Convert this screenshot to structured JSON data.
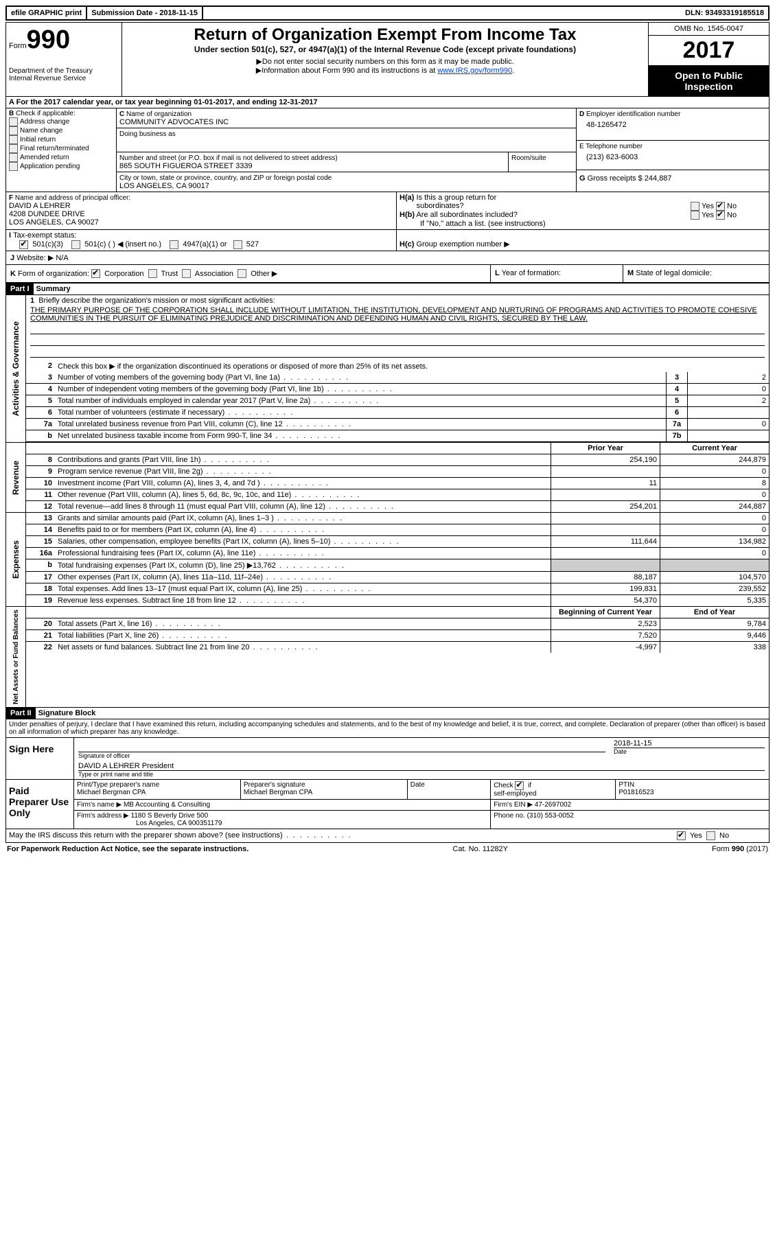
{
  "efile": {
    "print": "efile GRAPHIC print",
    "sub_label": "Submission Date - 2018-11-15",
    "dln": "DLN: 93493319185518"
  },
  "header": {
    "form_word": "Form",
    "form_num": "990",
    "dept1": "Department of the Treasury",
    "dept2": "Internal Revenue Service",
    "title": "Return of Organization Exempt From Income Tax",
    "subtitle": "Under section 501(c), 527, or 4947(a)(1) of the Internal Revenue Code (except private foundations)",
    "line_ssn": "Do not enter social security numbers on this form as it may be made public.",
    "line_info_a": "Information about Form 990 and its instructions is at ",
    "line_info_link": "www.IRS.gov/form990",
    "omb": "OMB No. 1545-0047",
    "year": "2017",
    "open1": "Open to Public",
    "open2": "Inspection"
  },
  "A": {
    "text_a": "For the 2017 calendar year, or tax year beginning 01-01-2017",
    "text_b": ", and ending 12-31-2017"
  },
  "B": {
    "label": "Check if applicable:",
    "opts": [
      "Address change",
      "Name change",
      "Initial return",
      "Final return/terminated",
      "Amended return",
      "Application pending"
    ],
    "letter": "B"
  },
  "C": {
    "name_label": "Name of organization",
    "name": "COMMUNITY ADVOCATES INC",
    "dba_label": "Doing business as",
    "street_label": "Number and street (or P.O. box if mail is not delivered to street address)",
    "room_label": "Room/suite",
    "street": "865 SOUTH FIGUEROA STREET 3339",
    "city_label": "City or town, state or province, country, and ZIP or foreign postal code",
    "city": "LOS ANGELES, CA  90017",
    "letter": "C"
  },
  "D": {
    "label": "Employer identification number",
    "val": "48-1265472",
    "letter": "D"
  },
  "E": {
    "label": "Telephone number",
    "val": "(213) 623-6003"
  },
  "G": {
    "label": "Gross receipts $",
    "val": "244,887",
    "letter": "G"
  },
  "F": {
    "label": "Name and address of principal officer:",
    "name": "DAVID A LEHRER",
    "addr1": "4208 DUNDEE DRIVE",
    "addr2": "LOS ANGELES, CA  90027",
    "letter": "F"
  },
  "H": {
    "a": "Is this a group return for",
    "a2": "subordinates?",
    "b": "Are all subordinates included?",
    "note": "If \"No,\" attach a list. (see instructions)",
    "c": "Group exemption number ▶",
    "yes": "Yes",
    "no": "No"
  },
  "I": {
    "label": "Tax-exempt status:",
    "o1": "501(c)(3)",
    "o2": "501(c) (   ) ◀ (insert no.)",
    "o3": "4947(a)(1) or",
    "o4": "527"
  },
  "J": {
    "label": "Website: ▶",
    "val": "N/A"
  },
  "K": {
    "label": "Form of organization:",
    "opts": [
      "Corporation",
      "Trust",
      "Association",
      "Other ▶"
    ]
  },
  "L": {
    "label": "Year of formation:"
  },
  "M": {
    "label": "State of legal domicile:"
  },
  "part1": {
    "hdr": "Part I",
    "title": "Summary",
    "side_gov": "Activities & Governance",
    "side_rev": "Revenue",
    "side_exp": "Expenses",
    "side_net": "Net Assets or Fund Balances",
    "l1_label": "Briefly describe the organization's mission or most significant activities:",
    "mission": "THE PRIMARY PURPOSE OF THE CORPORATION SHALL INCLUDE WITHOUT LIMITATION, THE INSTITUTION, DEVELOPMENT AND NURTURING OF PROGRAMS AND ACTIVITIES TO PROMOTE COHESIVE COMMUNITIES IN THE PURSUIT OF ELIMINATING PREJUDICE AND DISCRIMINATION AND DEFENDING HUMAN AND CIVIL RIGHTS, SECURED BY THE LAW.",
    "l2": "Check this box ▶      if the organization discontinued its operations or disposed of more than 25% of its net assets.",
    "lines_simple": [
      {
        "n": "3",
        "d": "Number of voting members of the governing body (Part VI, line 1a)",
        "c": "3",
        "v": "2"
      },
      {
        "n": "4",
        "d": "Number of independent voting members of the governing body (Part VI, line 1b)",
        "c": "4",
        "v": "0"
      },
      {
        "n": "5",
        "d": "Total number of individuals employed in calendar year 2017 (Part V, line 2a)",
        "c": "5",
        "v": "2"
      },
      {
        "n": "6",
        "d": "Total number of volunteers (estimate if necessary)",
        "c": "6",
        "v": ""
      },
      {
        "n": "7a",
        "d": "Total unrelated business revenue from Part VIII, column (C), line 12",
        "c": "7a",
        "v": "0"
      },
      {
        "n": "b",
        "d": "Net unrelated business taxable income from Form 990-T, line 34",
        "c": "7b",
        "v": ""
      }
    ],
    "col_prior": "Prior Year",
    "col_curr": "Current Year",
    "rev_lines": [
      {
        "n": "8",
        "d": "Contributions and grants (Part VIII, line 1h)",
        "p": "254,190",
        "c": "244,879"
      },
      {
        "n": "9",
        "d": "Program service revenue (Part VIII, line 2g)",
        "p": "",
        "c": "0"
      },
      {
        "n": "10",
        "d": "Investment income (Part VIII, column (A), lines 3, 4, and 7d )",
        "p": "11",
        "c": "8"
      },
      {
        "n": "11",
        "d": "Other revenue (Part VIII, column (A), lines 5, 6d, 8c, 9c, 10c, and 11e)",
        "p": "",
        "c": "0"
      },
      {
        "n": "12",
        "d": "Total revenue—add lines 8 through 11 (must equal Part VIII, column (A), line 12)",
        "p": "254,201",
        "c": "244,887"
      }
    ],
    "exp_lines": [
      {
        "n": "13",
        "d": "Grants and similar amounts paid (Part IX, column (A), lines 1–3 )",
        "p": "",
        "c": "0"
      },
      {
        "n": "14",
        "d": "Benefits paid to or for members (Part IX, column (A), line 4)",
        "p": "",
        "c": "0"
      },
      {
        "n": "15",
        "d": "Salaries, other compensation, employee benefits (Part IX, column (A), lines 5–10)",
        "p": "111,644",
        "c": "134,982"
      },
      {
        "n": "16a",
        "d": "Professional fundraising fees (Part IX, column (A), line 11e)",
        "p": "",
        "c": "0"
      },
      {
        "n": "b",
        "d": "Total fundraising expenses (Part IX, column (D), line 25) ▶13,762",
        "p": "GRAY",
        "c": "GRAY"
      },
      {
        "n": "17",
        "d": "Other expenses (Part IX, column (A), lines 11a–11d, 11f–24e)",
        "p": "88,187",
        "c": "104,570"
      },
      {
        "n": "18",
        "d": "Total expenses. Add lines 13–17 (must equal Part IX, column (A), line 25)",
        "p": "199,831",
        "c": "239,552"
      },
      {
        "n": "19",
        "d": "Revenue less expenses. Subtract line 18 from line 12",
        "p": "54,370",
        "c": "5,335"
      }
    ],
    "col_bcy": "Beginning of Current Year",
    "col_eoy": "End of Year",
    "net_lines": [
      {
        "n": "20",
        "d": "Total assets (Part X, line 16)",
        "p": "2,523",
        "c": "9,784"
      },
      {
        "n": "21",
        "d": "Total liabilities (Part X, line 26)",
        "p": "7,520",
        "c": "9,446"
      },
      {
        "n": "22",
        "d": "Net assets or fund balances. Subtract line 21 from line 20",
        "p": "-4,997",
        "c": "338"
      }
    ]
  },
  "part2": {
    "hdr": "Part II",
    "title": "Signature Block",
    "jurat": "Under penalties of perjury, I declare that I have examined this return, including accompanying schedules and statements, and to the best of my knowledge and belief, it is true, correct, and complete. Declaration of preparer (other than officer) is based on all information of which preparer has any knowledge.",
    "sign_here": "Sign Here",
    "sig_label": "Signature of officer",
    "date_label": "Date",
    "date": "2018-11-15",
    "name_title": "DAVID A LEHRER President",
    "name_title_label": "Type or print name and title",
    "paid": "Paid Preparer Use Only",
    "prep_name_l": "Print/Type preparer's name",
    "prep_name": "Michael Bergman CPA",
    "prep_sig_l": "Preparer's signature",
    "prep_sig": "Michael Bergman CPA",
    "prep_date_l": "Date",
    "self_l": "Check        if self-employed",
    "ptin_l": "PTIN",
    "ptin": "P01816523",
    "firm_name_l": "Firm's name    ▶",
    "firm_name": "MB Accounting & Consulting",
    "firm_ein_l": "Firm's EIN ▶",
    "firm_ein": "47-2697002",
    "firm_addr_l": "Firm's address ▶",
    "firm_addr1": "1180 S Beverly Drive 500",
    "firm_addr2": "Los Angeles, CA  900351179",
    "phone_l": "Phone no.",
    "phone": "(310) 553-0052",
    "discuss": "May the IRS discuss this return with the preparer shown above? (see instructions)",
    "yes": "Yes",
    "no": "No"
  },
  "footer": {
    "pra": "For Paperwork Reduction Act Notice, see the separate instructions.",
    "cat": "Cat. No. 11282Y",
    "form": "Form 990 (2017)"
  }
}
